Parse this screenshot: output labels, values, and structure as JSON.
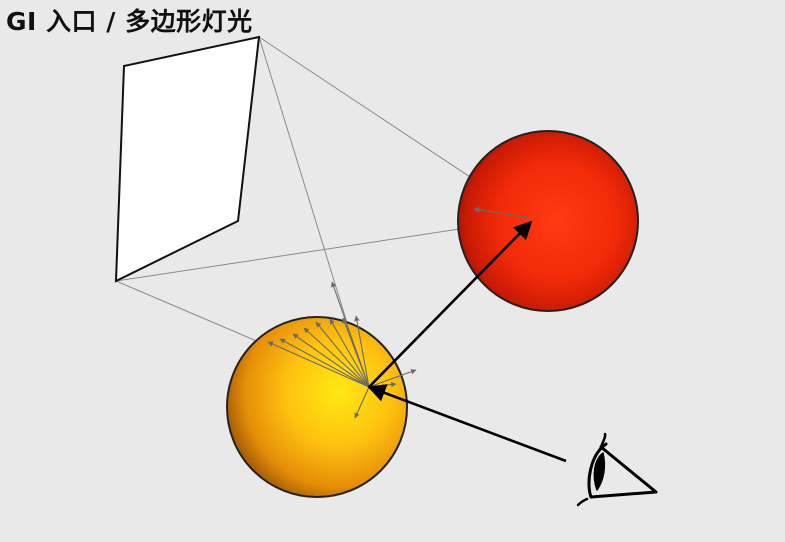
{
  "title": "GI 入口 / 多边形灯光",
  "colors": {
    "background": "#e9e9ea",
    "light_panel": "#ffffff",
    "red_sphere": "#ff2a0a",
    "yellow_sphere": "#ffd20a",
    "construction_lines": "#8a8a8a",
    "main_rays": "#000000"
  },
  "elements": {
    "light": "polygon-light-panel",
    "spheres": [
      "red-sphere",
      "yellow-sphere"
    ],
    "eye": "eye-icon"
  }
}
